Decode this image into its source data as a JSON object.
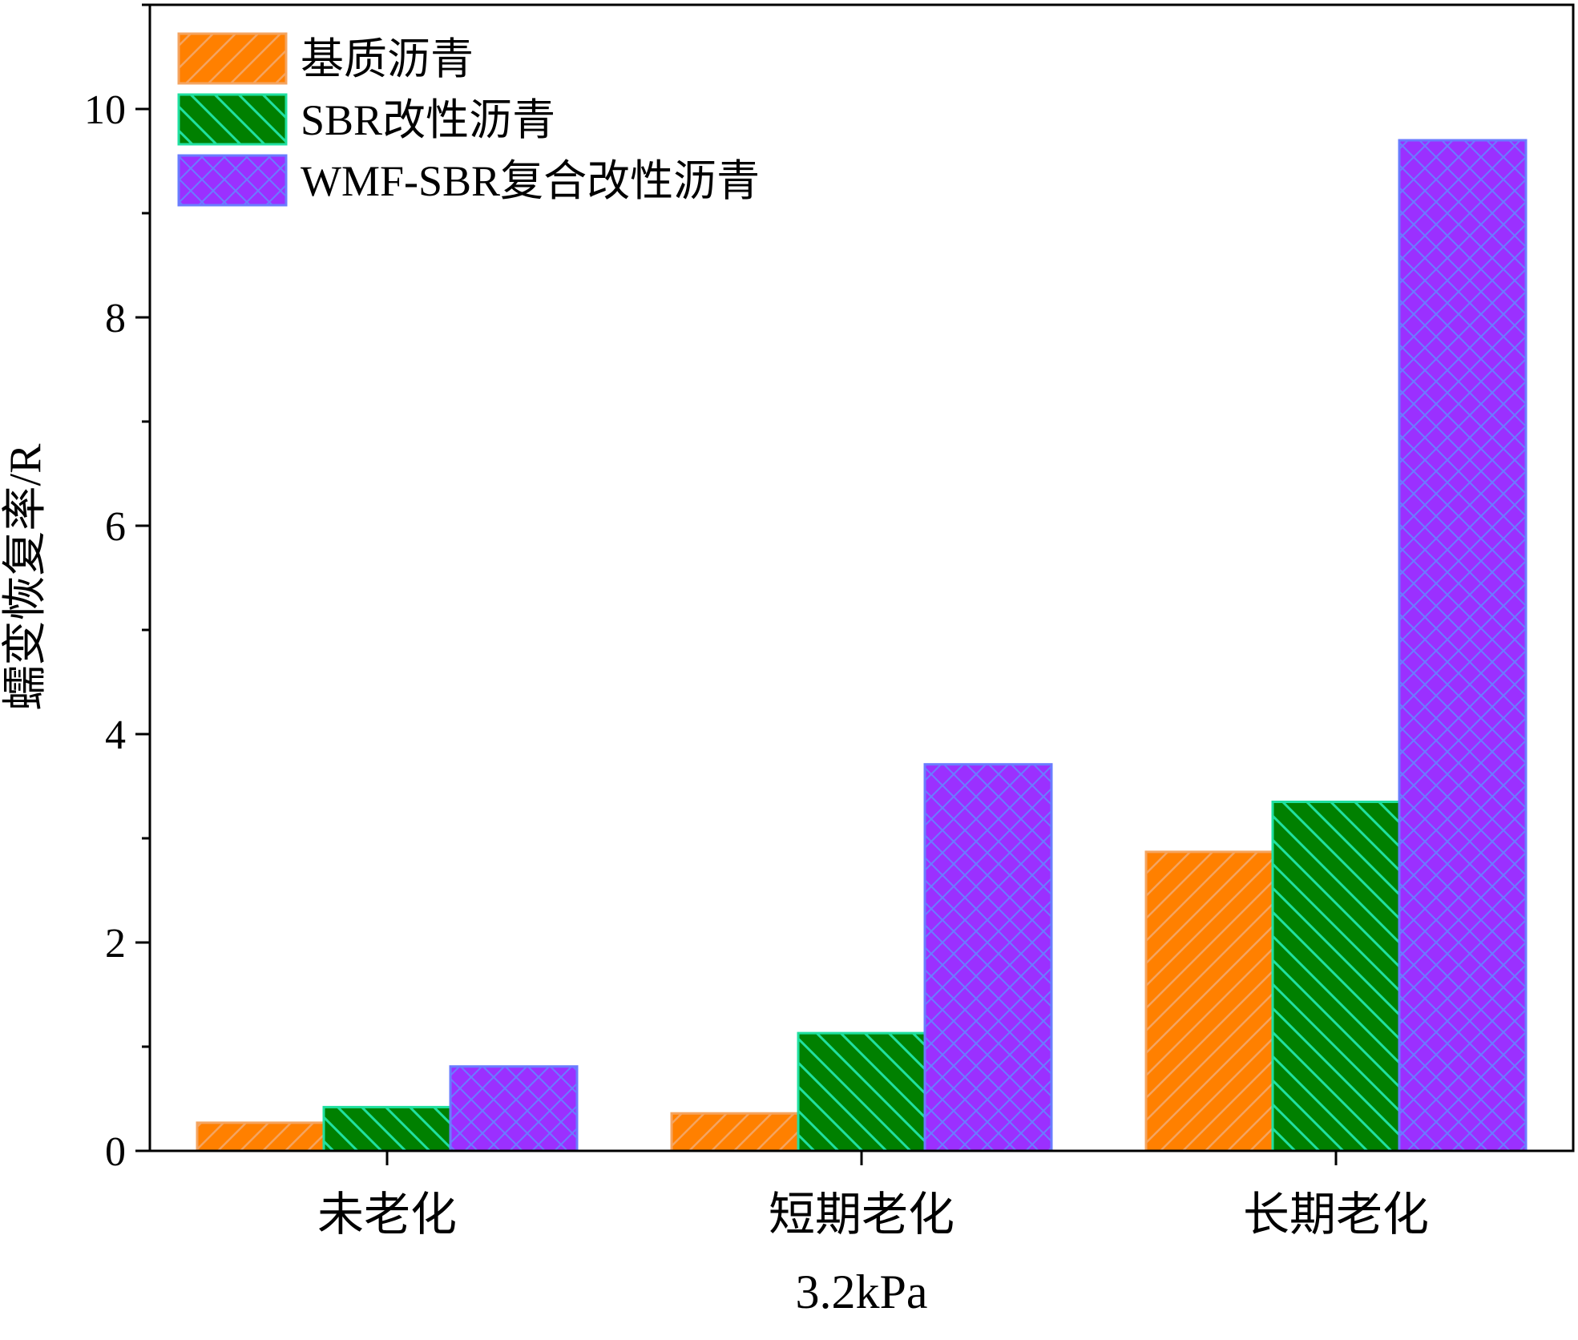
{
  "chart_data": {
    "type": "bar",
    "title": "",
    "xlabel": "3.2kPa",
    "ylabel": "蠕变恢复率/R",
    "categories": [
      "未老化",
      "短期老化",
      "长期老化"
    ],
    "series": [
      {
        "name": "基质沥青",
        "values": [
          0.27,
          0.36,
          2.87
        ],
        "color": "#FF8000",
        "edge": "#F4A460",
        "pattern": "diag-fwd"
      },
      {
        "name": "SBR改性沥青",
        "values": [
          0.42,
          1.13,
          3.35
        ],
        "color": "#008000",
        "edge": "#20E0A0",
        "pattern": "diag-back"
      },
      {
        "name": "WMF-SBR复合改性沥青",
        "values": [
          0.81,
          3.71,
          9.7
        ],
        "color": "#9B30FF",
        "edge": "#6A7CFF",
        "pattern": "crosshatch"
      }
    ],
    "ylim": [
      0,
      11
    ],
    "yticks": [
      0,
      2,
      4,
      6,
      8,
      10
    ],
    "grid": false,
    "legend_position": "top-left"
  }
}
